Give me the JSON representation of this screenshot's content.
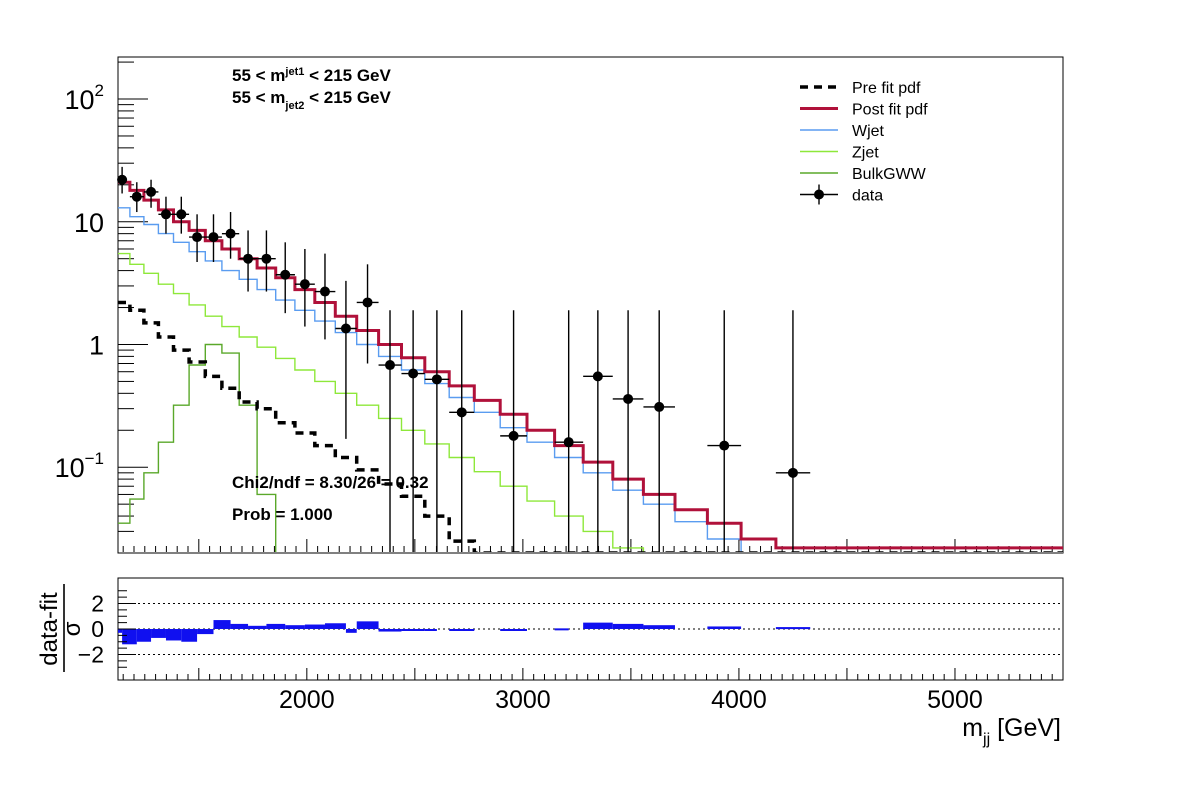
{
  "chart_data": [
    {
      "type": "line",
      "title": "",
      "xlabel": "",
      "ylabel": "",
      "yscale": "log",
      "xlim": [
        1126,
        5500
      ],
      "ylim": [
        0.02,
        220
      ],
      "y_tick_labels": [
        {
          "v": 100,
          "base": "10",
          "exp": "2"
        },
        {
          "v": 10,
          "base": "10",
          "exp": ""
        },
        {
          "v": 1,
          "base": "1",
          "exp": ""
        },
        {
          "v": 0.1,
          "base": "10",
          "exp": "−1"
        }
      ],
      "annotations": {
        "cut1_pre": "55 < m",
        "cut1_sub": "jet1",
        "cut1_post": " < 215 GeV",
        "cut2_pre": "55 < m",
        "cut2_sub": "jet2",
        "cut2_post": " < 215 GeV",
        "chi2": "Chi2/ndf = 8.30/26 = 0.32",
        "prob": "Prob = 1.000"
      },
      "legend_position": "top-right",
      "legend": [
        {
          "label": "Pre fit pdf",
          "color": "#000000",
          "style": "dashed"
        },
        {
          "label": "Post fit pdf",
          "color": "#b0113a",
          "style": "solid"
        },
        {
          "label": "Wjet",
          "color": "#5a9cf0",
          "style": "solid"
        },
        {
          "label": "Zjet",
          "color": "#8ee83a",
          "style": "solid"
        },
        {
          "label": "BulkGWW",
          "color": "#5aa82a",
          "style": "solid"
        },
        {
          "label": "data",
          "color": "#000000",
          "style": "marker"
        }
      ],
      "bin_edges": [
        1126,
        1181,
        1246,
        1313,
        1383,
        1455,
        1530,
        1607,
        1687,
        1770,
        1856,
        1945,
        2037,
        2132,
        2231,
        2332,
        2438,
        2546,
        2659,
        2775,
        2895,
        3019,
        3147,
        3279,
        3416,
        3558,
        3704,
        3854,
        4010,
        4171,
        5500
      ],
      "series": [
        {
          "name": "Post fit pdf",
          "color": "#b0113a",
          "values": [
            21,
            18,
            15,
            12.5,
            10,
            8.5,
            7,
            6,
            5,
            4.2,
            3.5,
            2.8,
            2.2,
            1.7,
            1.3,
            1.0,
            0.78,
            0.6,
            0.46,
            0.35,
            0.27,
            0.2,
            0.15,
            0.11,
            0.08,
            0.06,
            0.045,
            0.035,
            0.026,
            0.022
          ]
        },
        {
          "name": "Wjet",
          "color": "#5a9cf0",
          "values": [
            13,
            11,
            9.5,
            8,
            6.8,
            5.7,
            4.8,
            4.0,
            3.4,
            2.8,
            2.3,
            1.9,
            1.55,
            1.25,
            1.0,
            0.8,
            0.62,
            0.48,
            0.37,
            0.28,
            0.21,
            0.16,
            0.12,
            0.09,
            0.065,
            0.05,
            0.036,
            0.026,
            0.02,
            0.02
          ]
        },
        {
          "name": "Zjet",
          "color": "#8ee83a",
          "values": [
            5.5,
            4.5,
            3.8,
            3.1,
            2.6,
            2.1,
            1.7,
            1.4,
            1.15,
            0.95,
            0.77,
            0.62,
            0.5,
            0.4,
            0.32,
            0.25,
            0.2,
            0.155,
            0.12,
            0.092,
            0.07,
            0.053,
            0.04,
            0.03,
            0.022,
            0.02,
            0.02,
            0.02,
            0.02,
            0.02
          ]
        },
        {
          "name": "BulkGWW",
          "color": "#5aa82a",
          "values": [
            0.035,
            0.055,
            0.09,
            0.16,
            0.32,
            0.68,
            1.0,
            0.85,
            0.32,
            0.06,
            0.02,
            0.02,
            0.02,
            0.02,
            0.02,
            0.02,
            0.02,
            0.02,
            0.02,
            0.02,
            0.02,
            0.02,
            0.02,
            0.02,
            0.02,
            0.02,
            0.02,
            0.02,
            0.02,
            0.02
          ]
        },
        {
          "name": "Pre fit pdf",
          "color": "#000000",
          "dashed": true,
          "values": [
            2.2,
            1.9,
            1.5,
            1.15,
            0.9,
            0.72,
            0.55,
            0.44,
            0.34,
            0.3,
            0.23,
            0.19,
            0.15,
            0.12,
            0.095,
            0.073,
            0.058,
            0.04,
            0.025,
            0.02,
            0.02,
            0.02,
            0.02,
            0.02,
            0.02,
            0.02,
            0.02,
            0.02,
            0.02,
            0.02
          ]
        }
      ],
      "data_points": [
        {
          "x": 1145,
          "y": 22,
          "xlo": 1126,
          "xhi": 1164,
          "ylo": 17,
          "yhi": 28
        },
        {
          "x": 1213,
          "y": 16,
          "xlo": 1181,
          "xhi": 1246,
          "ylo": 12,
          "yhi": 21
        },
        {
          "x": 1279,
          "y": 17.5,
          "xlo": 1246,
          "xhi": 1313,
          "ylo": 13,
          "yhi": 22
        },
        {
          "x": 1348,
          "y": 11.5,
          "xlo": 1313,
          "xhi": 1383,
          "ylo": 8,
          "yhi": 16
        },
        {
          "x": 1419,
          "y": 11.5,
          "xlo": 1383,
          "xhi": 1455,
          "ylo": 8,
          "yhi": 16
        },
        {
          "x": 1492,
          "y": 7.5,
          "xlo": 1455,
          "xhi": 1530,
          "ylo": 4.7,
          "yhi": 11.5
        },
        {
          "x": 1568,
          "y": 7.5,
          "xlo": 1530,
          "xhi": 1607,
          "ylo": 4.7,
          "yhi": 11.5
        },
        {
          "x": 1647,
          "y": 8,
          "xlo": 1607,
          "xhi": 1687,
          "ylo": 5,
          "yhi": 12
        },
        {
          "x": 1728,
          "y": 5,
          "xlo": 1687,
          "xhi": 1770,
          "ylo": 2.7,
          "yhi": 8.5
        },
        {
          "x": 1813,
          "y": 5,
          "xlo": 1770,
          "xhi": 1856,
          "ylo": 2.7,
          "yhi": 8.5
        },
        {
          "x": 1900,
          "y": 3.7,
          "xlo": 1856,
          "xhi": 1945,
          "ylo": 1.8,
          "yhi": 6.8
        },
        {
          "x": 1991,
          "y": 3.1,
          "xlo": 1945,
          "xhi": 2037,
          "ylo": 1.4,
          "yhi": 6
        },
        {
          "x": 2084,
          "y": 2.7,
          "xlo": 2037,
          "xhi": 2132,
          "ylo": 1.1,
          "yhi": 5.5
        },
        {
          "x": 2181,
          "y": 1.35,
          "xlo": 2132,
          "xhi": 2231,
          "ylo": 0.17,
          "yhi": 3.3
        },
        {
          "x": 2281,
          "y": 2.2,
          "xlo": 2231,
          "xhi": 2332,
          "ylo": 0.7,
          "yhi": 4.5
        },
        {
          "x": 2385,
          "y": 0.68,
          "xlo": 2332,
          "xhi": 2438,
          "ylo": 0.02,
          "yhi": 1.9
        },
        {
          "x": 2492,
          "y": 0.58,
          "xlo": 2438,
          "xhi": 2546,
          "ylo": 0.02,
          "yhi": 1.9
        },
        {
          "x": 2602,
          "y": 0.52,
          "xlo": 2546,
          "xhi": 2659,
          "ylo": 0.02,
          "yhi": 1.9
        },
        {
          "x": 2717,
          "y": 0.28,
          "xlo": 2659,
          "xhi": 2775,
          "ylo": 0.02,
          "yhi": 1.9
        },
        {
          "x": 2957,
          "y": 0.18,
          "xlo": 2895,
          "xhi": 3019,
          "ylo": 0.02,
          "yhi": 1.9
        },
        {
          "x": 3212,
          "y": 0.16,
          "xlo": 3147,
          "xhi": 3279,
          "ylo": 0.02,
          "yhi": 1.9
        },
        {
          "x": 3347,
          "y": 0.55,
          "xlo": 3279,
          "xhi": 3416,
          "ylo": 0.02,
          "yhi": 1.9
        },
        {
          "x": 3487,
          "y": 0.36,
          "xlo": 3416,
          "xhi": 3558,
          "ylo": 0.02,
          "yhi": 1.9
        },
        {
          "x": 3631,
          "y": 0.31,
          "xlo": 3558,
          "xhi": 3704,
          "ylo": 0.02,
          "yhi": 1.9
        },
        {
          "x": 3932,
          "y": 0.15,
          "xlo": 3854,
          "xhi": 4010,
          "ylo": 0.02,
          "yhi": 1.9
        },
        {
          "x": 4250,
          "y": 0.09,
          "xlo": 4171,
          "xhi": 4330,
          "ylo": 0.02,
          "yhi": 1.9
        }
      ]
    },
    {
      "type": "bar",
      "xlabel_main": "m",
      "xlabel_sub": "jj",
      "xlabel_unit": " [GeV]",
      "ylabel_num": "data-fit",
      "ylabel_den": "σ",
      "xlim": [
        1126,
        5500
      ],
      "ylim": [
        -4,
        4
      ],
      "x_tick_labels": [
        "2000",
        "3000",
        "4000",
        "5000"
      ],
      "x_ticks": [
        2000,
        3000,
        4000,
        5000
      ],
      "y_tick_labels": [
        "2",
        "0",
        "−2"
      ],
      "y_ticks": [
        2,
        0,
        -2
      ],
      "reference_lines": [
        2,
        0,
        -2
      ],
      "bar_color": "#1010f0",
      "pulls": [
        {
          "x0": 1126,
          "x1": 1145,
          "v": -0.3
        },
        {
          "x0": 1145,
          "x1": 1213,
          "v": -1.2
        },
        {
          "x0": 1213,
          "x1": 1279,
          "v": -1.0
        },
        {
          "x0": 1279,
          "x1": 1348,
          "v": -0.7
        },
        {
          "x0": 1348,
          "x1": 1419,
          "v": -0.9
        },
        {
          "x0": 1419,
          "x1": 1492,
          "v": -1.0
        },
        {
          "x0": 1492,
          "x1": 1568,
          "v": -0.4
        },
        {
          "x0": 1568,
          "x1": 1647,
          "v": 0.7
        },
        {
          "x0": 1647,
          "x1": 1728,
          "v": 0.4
        },
        {
          "x0": 1728,
          "x1": 1813,
          "v": 0.25
        },
        {
          "x0": 1813,
          "x1": 1900,
          "v": 0.4
        },
        {
          "x0": 1900,
          "x1": 1991,
          "v": 0.3
        },
        {
          "x0": 1991,
          "x1": 2084,
          "v": 0.35
        },
        {
          "x0": 2084,
          "x1": 2181,
          "v": 0.45
        },
        {
          "x0": 2181,
          "x1": 2231,
          "v": -0.3
        },
        {
          "x0": 2231,
          "x1": 2332,
          "v": 0.6
        },
        {
          "x0": 2332,
          "x1": 2438,
          "v": -0.2
        },
        {
          "x0": 2438,
          "x1": 2546,
          "v": -0.1
        },
        {
          "x0": 2546,
          "x1": 2602,
          "v": -0.05
        },
        {
          "x0": 2659,
          "x1": 2775,
          "v": -0.15
        },
        {
          "x0": 2895,
          "x1": 3019,
          "v": -0.15
        },
        {
          "x0": 3147,
          "x1": 3212,
          "v": 0.05
        },
        {
          "x0": 3279,
          "x1": 3416,
          "v": 0.5
        },
        {
          "x0": 3416,
          "x1": 3558,
          "v": 0.4
        },
        {
          "x0": 3558,
          "x1": 3704,
          "v": 0.3
        },
        {
          "x0": 3854,
          "x1": 4010,
          "v": 0.2
        },
        {
          "x0": 4171,
          "x1": 4330,
          "v": 0.15
        }
      ]
    }
  ]
}
